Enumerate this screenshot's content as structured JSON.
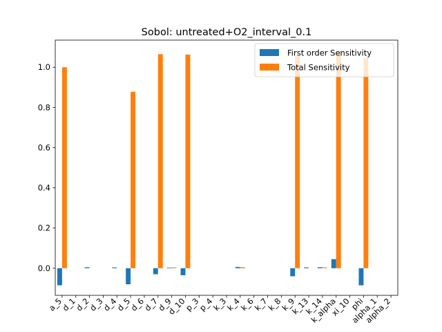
{
  "chart_data": {
    "type": "bar",
    "title": "Sobol: untreated+O2_interval_0.1",
    "xlabel": "",
    "ylabel": "",
    "categories": [
      "a_5",
      "d_1",
      "d_2",
      "d_3",
      "d_4",
      "d_5",
      "d_6",
      "d_7",
      "d_9",
      "d_10",
      "p_3",
      "p_4",
      "k_3",
      "k_4",
      "k_6",
      "k_7",
      "k_8",
      "k_9",
      "k_13",
      "k_14",
      "k_alpha",
      "xi_10",
      "phi",
      "alpha_1",
      "alpha_2"
    ],
    "series": [
      {
        "name": "First order Sensitivity",
        "color": "#1f77b4",
        "values": [
          -0.085,
          0.0,
          0.005,
          0.0,
          0.004,
          -0.08,
          0.0,
          -0.03,
          0.003,
          -0.035,
          0.0,
          0.0,
          0.0,
          0.006,
          0.0,
          0.0,
          0.0,
          -0.04,
          0.004,
          0.005,
          0.045,
          0.0,
          -0.085,
          0.0,
          0.0
        ]
      },
      {
        "name": "Total Sensitivity",
        "color": "#ff7f0e",
        "values": [
          1.0,
          0.0,
          0.0,
          0.0,
          0.0,
          0.878,
          0.0,
          1.065,
          0.004,
          1.063,
          0.0,
          0.0,
          0.0,
          0.005,
          0.0,
          0.0,
          0.0,
          1.055,
          0.0,
          0.004,
          1.08,
          0.0,
          1.045,
          0.0,
          0.0
        ]
      }
    ],
    "yticks": [
      "0.0",
      "0.2",
      "0.4",
      "0.6",
      "0.8",
      "1.0"
    ],
    "ylim": [
      -0.135,
      1.135
    ],
    "grid": false,
    "legend_position": "top-right"
  }
}
